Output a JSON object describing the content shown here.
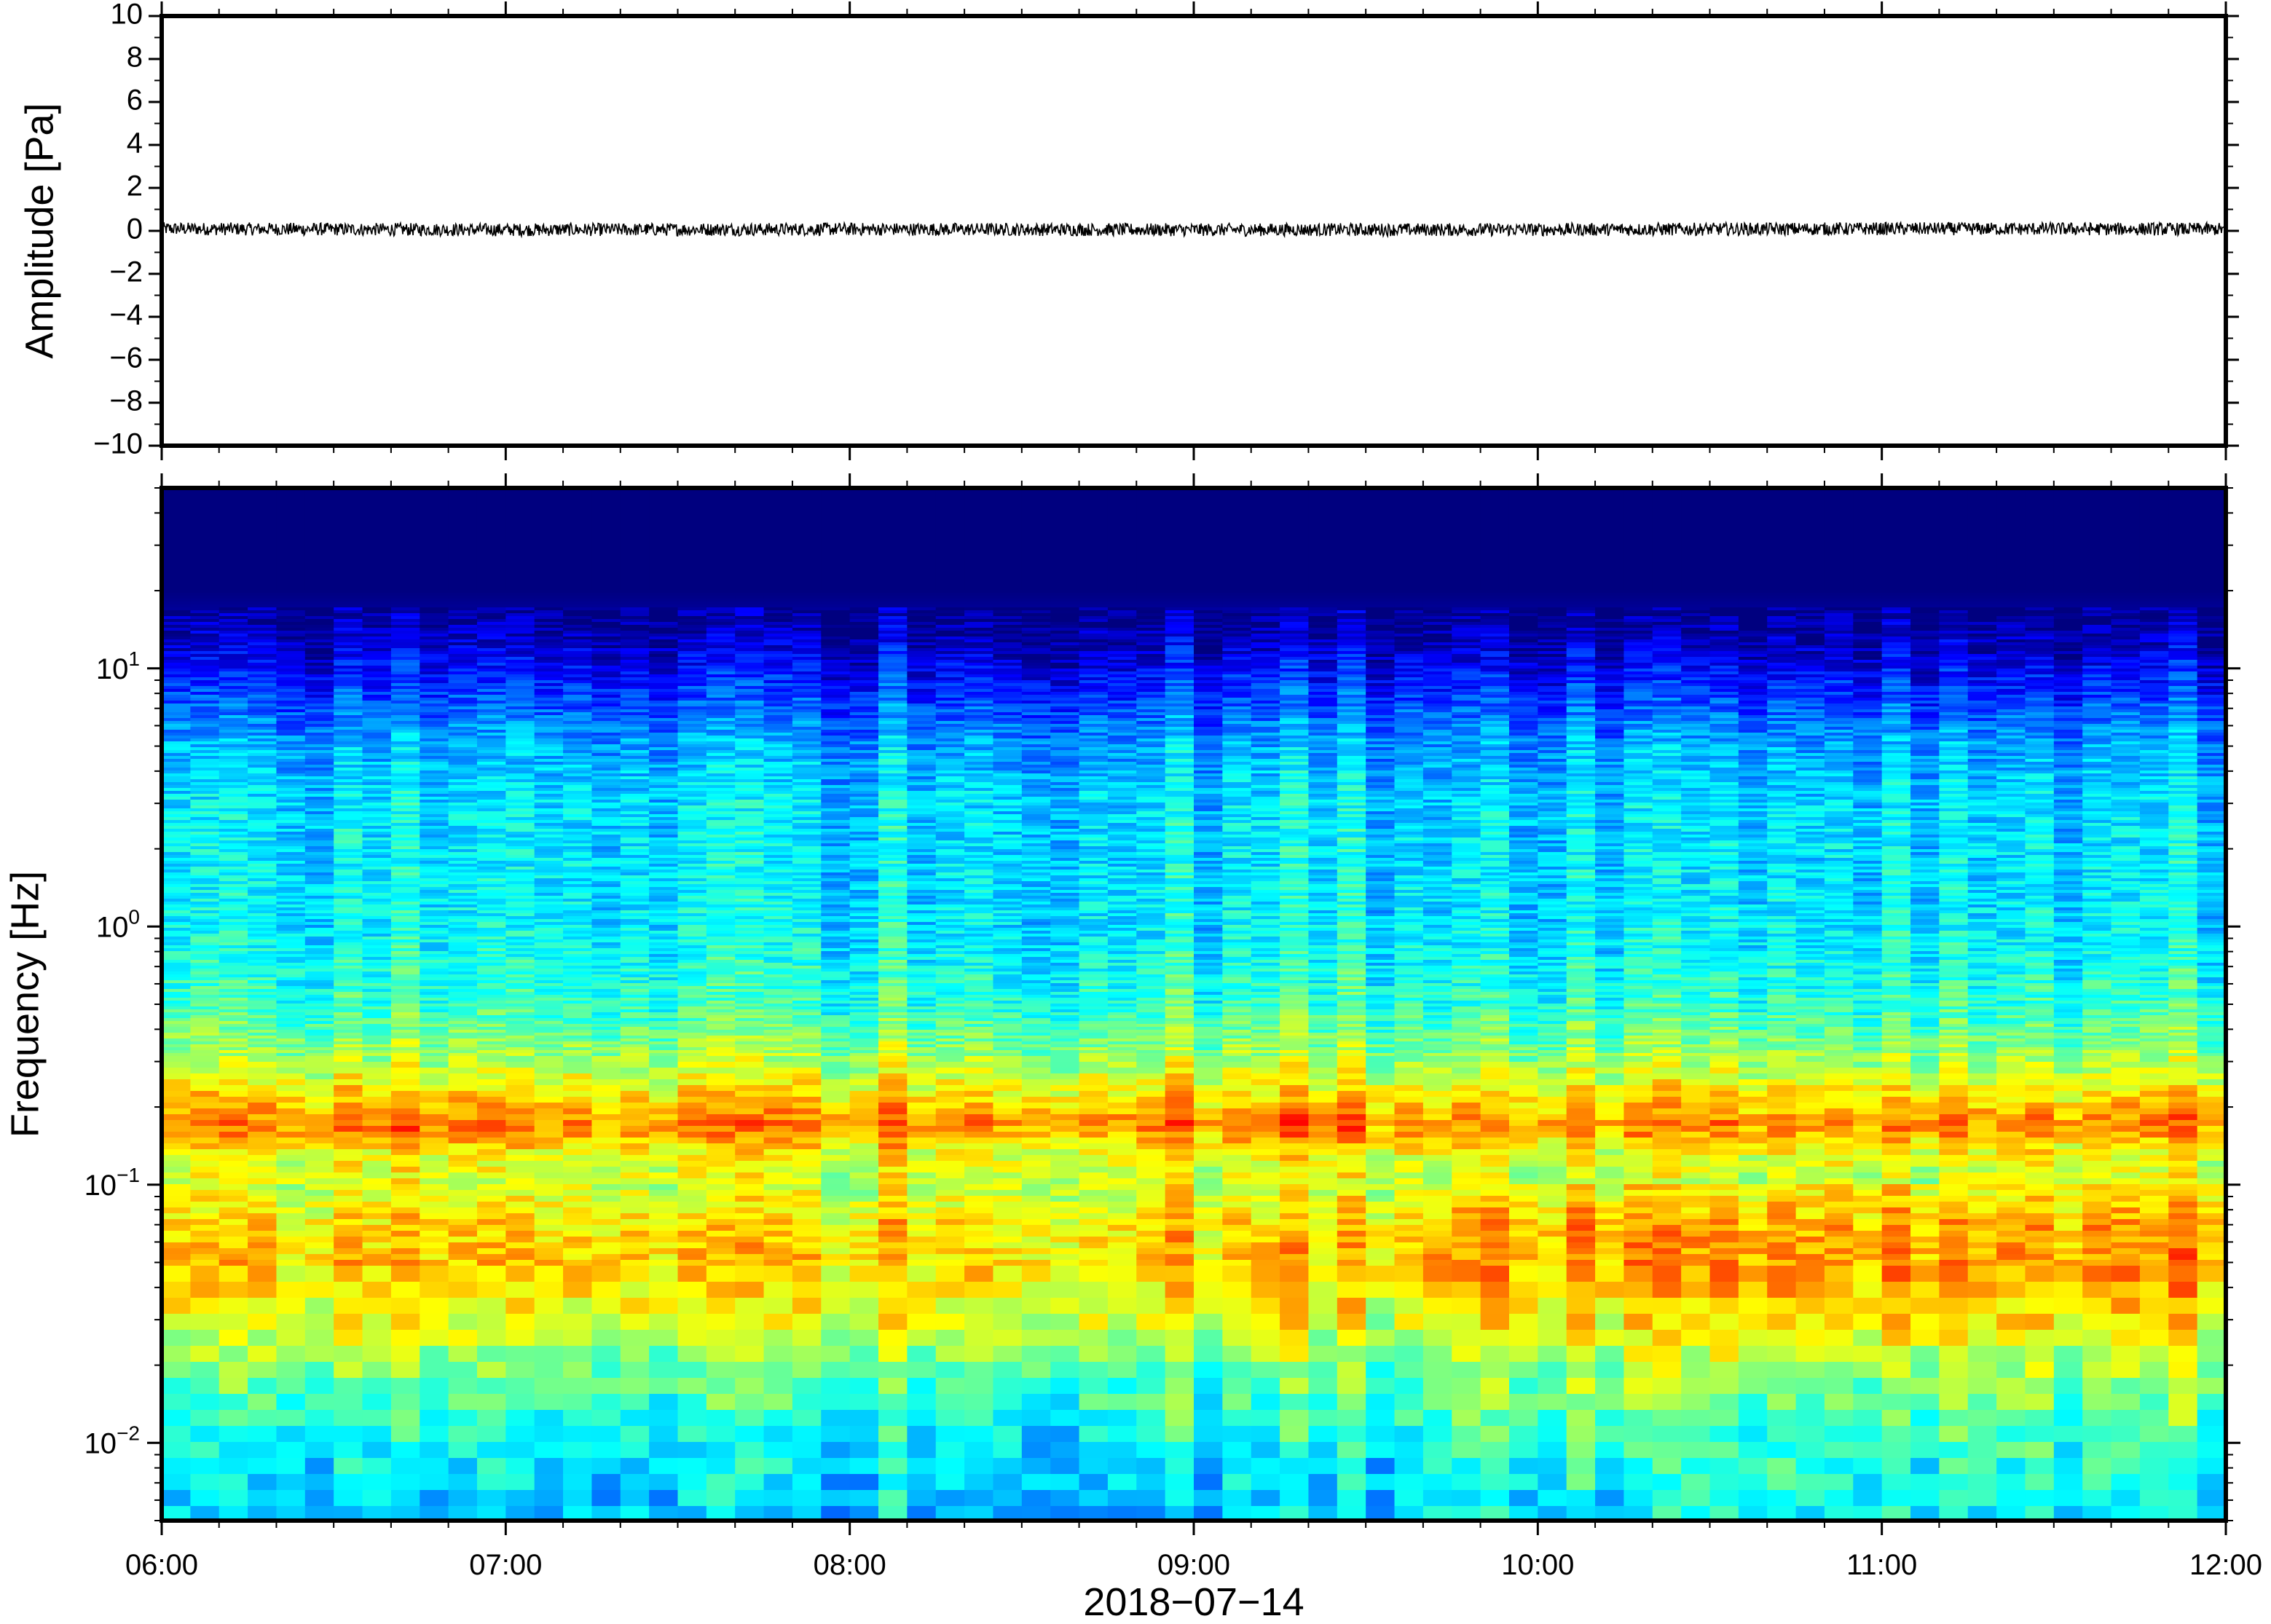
{
  "chart_data": [
    {
      "type": "line",
      "name": "waveform",
      "xlabel": "",
      "ylabel": "Amplitude [Pa]",
      "xlim": [
        "2018-07-14 06:00",
        "2018-07-14 12:00"
      ],
      "ylim": [
        -10,
        10
      ],
      "yticks": [
        10,
        8,
        6,
        4,
        2,
        0,
        -2,
        -4,
        -6,
        -8,
        -10
      ],
      "ytick_labels": [
        "10",
        "8",
        "6",
        "4",
        "2",
        "0",
        "−2",
        "−4",
        "−6",
        "−8",
        "−10"
      ],
      "series": [
        {
          "color": "#000000",
          "x": [
            "06:00",
            "07:00",
            "08:00",
            "09:00",
            "10:00",
            "11:00",
            "12:00"
          ],
          "values": [
            0.1,
            0.05,
            0.08,
            0.05,
            0.06,
            0.1,
            0.08
          ],
          "noise_amplitude": 0.3
        }
      ],
      "grid": false
    },
    {
      "type": "heatmap",
      "name": "spectrogram",
      "xlabel": "2018−07−14",
      "ylabel": "Frequency [Hz]",
      "xlim": [
        "06:00",
        "12:00"
      ],
      "ylim": [
        0.005,
        50
      ],
      "yscale": "log",
      "xticks": [
        "06:00",
        "07:00",
        "08:00",
        "09:00",
        "10:00",
        "11:00",
        "12:00"
      ],
      "yticks": [
        0.01,
        0.1,
        1,
        10
      ],
      "ytick_labels": [
        {
          "base": "10",
          "exp": "−2"
        },
        {
          "base": "10",
          "exp": "−1"
        },
        {
          "base": "10",
          "exp": "0"
        },
        {
          "base": "10",
          "exp": "1"
        }
      ],
      "colormap": "jet",
      "colormap_stops": [
        "#00007f",
        "#0000ff",
        "#007fff",
        "#00ffff",
        "#7fff7f",
        "#ffff00",
        "#ff7f00",
        "#ff0000",
        "#7f0000"
      ],
      "time_bins": 72,
      "energy_profile": [
        {
          "freq": 50,
          "level": 0.0
        },
        {
          "freq": 20,
          "level": 0.0
        },
        {
          "freq": 14,
          "level": 0.05
        },
        {
          "freq": 10,
          "level": 0.13
        },
        {
          "freq": 7,
          "level": 0.22
        },
        {
          "freq": 5,
          "level": 0.3
        },
        {
          "freq": 3,
          "level": 0.35
        },
        {
          "freq": 1,
          "level": 0.37
        },
        {
          "freq": 0.5,
          "level": 0.43
        },
        {
          "freq": 0.3,
          "level": 0.55
        },
        {
          "freq": 0.2,
          "level": 0.7
        },
        {
          "freq": 0.17,
          "level": 0.76
        },
        {
          "freq": 0.13,
          "level": 0.62
        },
        {
          "freq": 0.1,
          "level": 0.58
        },
        {
          "freq": 0.07,
          "level": 0.66
        },
        {
          "freq": 0.05,
          "level": 0.68
        },
        {
          "freq": 0.03,
          "level": 0.6
        },
        {
          "freq": 0.02,
          "level": 0.5
        },
        {
          "freq": 0.01,
          "level": 0.38
        },
        {
          "freq": 0.005,
          "level": 0.32
        }
      ],
      "grid": false
    }
  ],
  "colors": {
    "frame": "#000000",
    "background": "#ffffff"
  }
}
